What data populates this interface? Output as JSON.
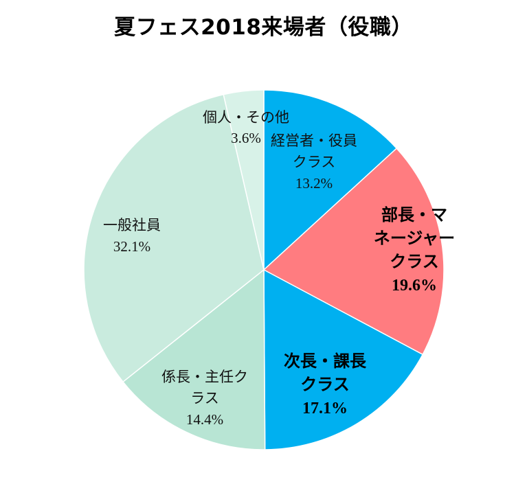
{
  "chart_data": {
    "type": "pie",
    "title": "夏フェス2018来場者（役職）",
    "slices": [
      {
        "label_lines": [
          "経営者・役員",
          "クラス"
        ],
        "value": 13.2,
        "pct_label": "13.2%",
        "color": "#00b0f0",
        "emphasis": false
      },
      {
        "label_lines": [
          "部長・マ",
          "ネージャー",
          "クラス"
        ],
        "value": 19.6,
        "pct_label": "19.6%",
        "color": "#ff7c80",
        "emphasis": true
      },
      {
        "label_lines": [
          "次長・課長",
          "クラス"
        ],
        "value": 17.1,
        "pct_label": "17.1%",
        "color": "#00b0f0",
        "emphasis": true
      },
      {
        "label_lines": [
          "係長・主任ク",
          "ラス"
        ],
        "value": 14.4,
        "pct_label": "14.4%",
        "color": "#b8e5d4",
        "emphasis": false
      },
      {
        "label_lines": [
          "一般社員"
        ],
        "value": 32.1,
        "pct_label": "32.1%",
        "color": "#c9ebde",
        "emphasis": false
      },
      {
        "label_lines": [
          "個人・その他"
        ],
        "value": 3.6,
        "pct_label": "3.6%",
        "color": "#d8f2e8",
        "emphasis": false
      }
    ],
    "start_angle": "12 o'clock",
    "direction": "clockwise",
    "legend": "none"
  }
}
